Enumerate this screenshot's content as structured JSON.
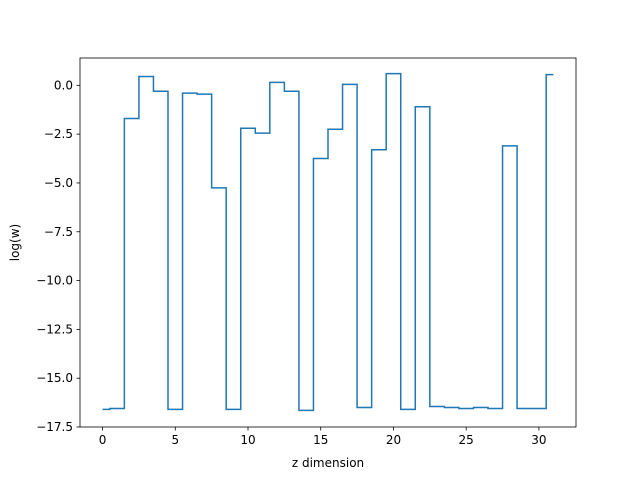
{
  "chart_data": {
    "type": "line",
    "drawstyle": "steps-mid",
    "title": "",
    "xlabel": "z dimension",
    "ylabel": "log(w)",
    "xlim": [
      -1.55,
      32.55
    ],
    "ylim": [
      -17.5,
      1.4
    ],
    "xticks": [
      0,
      5,
      10,
      15,
      20,
      25,
      30
    ],
    "xtick_labels": [
      "0",
      "5",
      "10",
      "15",
      "20",
      "25",
      "30"
    ],
    "yticks": [
      -17.5,
      -15.0,
      -12.5,
      -10.0,
      -7.5,
      -5.0,
      -2.5,
      0.0
    ],
    "ytick_labels": [
      "−17.5",
      "−15.0",
      "−12.5",
      "−10.0",
      "−7.5",
      "−5.0",
      "−2.5",
      "0.0"
    ],
    "grid": false,
    "color": "#1f77b4",
    "x": [
      0,
      1,
      2,
      3,
      4,
      5,
      6,
      7,
      8,
      9,
      10,
      11,
      12,
      13,
      14,
      15,
      16,
      17,
      18,
      19,
      20,
      21,
      22,
      23,
      24,
      25,
      26,
      27,
      28,
      29,
      30,
      31
    ],
    "y": [
      -16.6,
      -16.55,
      -1.7,
      0.45,
      -0.3,
      -16.6,
      -0.4,
      -0.45,
      -5.25,
      -16.6,
      -2.2,
      -2.45,
      0.15,
      -0.3,
      -16.65,
      -3.75,
      -2.25,
      0.05,
      -16.5,
      -3.3,
      0.6,
      -16.6,
      -1.1,
      -16.45,
      -16.5,
      -16.55,
      -16.5,
      -16.55,
      -3.1,
      -16.55,
      -16.55,
      0.55
    ]
  }
}
